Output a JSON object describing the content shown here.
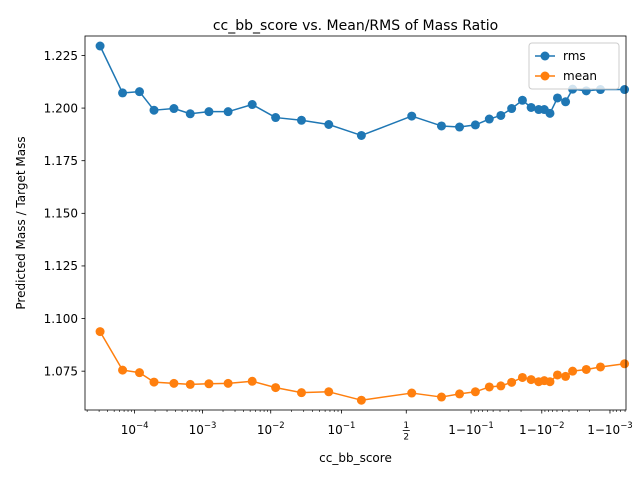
{
  "chart_data": {
    "type": "line",
    "title": "cc_bb_score vs. Mean/RMS of Mass Ratio",
    "xlabel": "cc_bb_score",
    "ylabel": "Predicted Mass / Target Mass",
    "xscale": "logit",
    "xlim": [
      1.86e-05,
      0.999419
    ],
    "ylim": [
      1.05655,
      1.23425
    ],
    "grid": false,
    "legend": {
      "position": "top-right",
      "entries": [
        "rms",
        "mean"
      ]
    },
    "x_ticks": [
      {
        "value": 0.0001,
        "base": "10",
        "exp": "−4",
        "prefix": ""
      },
      {
        "value": 0.001,
        "base": "10",
        "exp": "−3",
        "prefix": ""
      },
      {
        "value": 0.01,
        "base": "10",
        "exp": "−2",
        "prefix": ""
      },
      {
        "value": 0.1,
        "base": "10",
        "exp": "−1",
        "prefix": ""
      },
      {
        "value": 0.5,
        "frac_num": "1",
        "frac_den": "2"
      },
      {
        "value": 0.9,
        "base": "10",
        "exp": "−1",
        "prefix": "1−"
      },
      {
        "value": 0.99,
        "base": "10",
        "exp": "−2",
        "prefix": "1−"
      },
      {
        "value": 0.999,
        "base": "10",
        "exp": "−3",
        "prefix": "1−"
      }
    ],
    "y_ticks": [
      "1.075",
      "1.100",
      "1.125",
      "1.150",
      "1.175",
      "1.200",
      "1.225"
    ],
    "y_tick_values": [
      1.075,
      1.1,
      1.125,
      1.15,
      1.175,
      1.2,
      1.225
    ],
    "x": [
      3.1e-05,
      6.65e-05,
      0.000118,
      0.000193,
      0.000379,
      0.000659,
      0.001241,
      0.002375,
      0.005362,
      0.011785,
      0.02784,
      0.06735,
      0.1792,
      0.5462,
      0.7675,
      0.8589,
      0.9124,
      0.9435,
      0.9611,
      0.9727,
      0.9809,
      0.9857,
      0.9889,
      0.9908,
      0.9924,
      0.9941,
      0.99551,
      0.99646,
      0.99777,
      0.99862,
      0.99939
    ],
    "series": [
      {
        "name": "rms",
        "color": "#1f77b4",
        "values": [
          1.2295,
          1.2072,
          1.2078,
          1.199,
          1.1998,
          1.1973,
          1.1983,
          1.1983,
          1.2017,
          1.1955,
          1.1942,
          1.1922,
          1.187,
          1.1962,
          1.1915,
          1.191,
          1.192,
          1.1948,
          1.1965,
          1.1998,
          1.2037,
          1.2003,
          1.1993,
          1.1993,
          1.1975,
          1.2048,
          1.203,
          1.209,
          1.2082,
          1.2088,
          1.2088
        ]
      },
      {
        "name": "mean",
        "color": "#ff7f0e",
        "values": [
          1.0938,
          1.0755,
          1.0743,
          1.0698,
          1.0692,
          1.0687,
          1.069,
          1.0692,
          1.0702,
          1.0672,
          1.0648,
          1.0652,
          1.0612,
          1.0646,
          1.0627,
          1.0642,
          1.0652,
          1.0675,
          1.068,
          1.0697,
          1.072,
          1.071,
          1.07,
          1.0705,
          1.07,
          1.0732,
          1.0725,
          1.075,
          1.0758,
          1.077,
          1.0785
        ]
      }
    ]
  }
}
